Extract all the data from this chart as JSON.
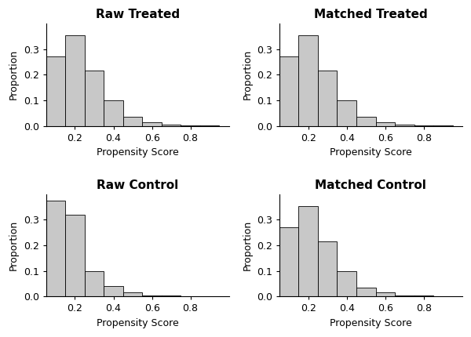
{
  "titles": [
    "Raw Treated",
    "Matched Treated",
    "Raw Control",
    "Matched Control"
  ],
  "xlabel": "Propensity Score",
  "ylabel": "Proportion",
  "bar_color": "#c8c8c8",
  "bar_edgecolor": "#000000",
  "xlim": [
    0.05,
    1.0
  ],
  "ylim": [
    0.0,
    0.4
  ],
  "xticks": [
    0.2,
    0.4,
    0.6,
    0.8
  ],
  "yticks": [
    0.0,
    0.1,
    0.2,
    0.3
  ],
  "bin_left_edges": [
    0.05,
    0.15,
    0.25,
    0.35,
    0.45,
    0.55,
    0.65,
    0.75,
    0.85
  ],
  "bin_width": 0.1,
  "histograms": {
    "raw_treated": [
      0.27,
      0.355,
      0.215,
      0.1,
      0.035,
      0.015,
      0.005,
      0.003,
      0.001
    ],
    "matched_treated": [
      0.27,
      0.355,
      0.215,
      0.1,
      0.035,
      0.015,
      0.005,
      0.003,
      0.001
    ],
    "raw_control": [
      0.375,
      0.32,
      0.1,
      0.04,
      0.015,
      0.005,
      0.003,
      0.001,
      0.0
    ],
    "matched_control": [
      0.27,
      0.355,
      0.215,
      0.1,
      0.035,
      0.015,
      0.005,
      0.003,
      0.001
    ]
  },
  "title_fontsize": 11,
  "label_fontsize": 9,
  "tick_fontsize": 9,
  "background_color": "#ffffff"
}
